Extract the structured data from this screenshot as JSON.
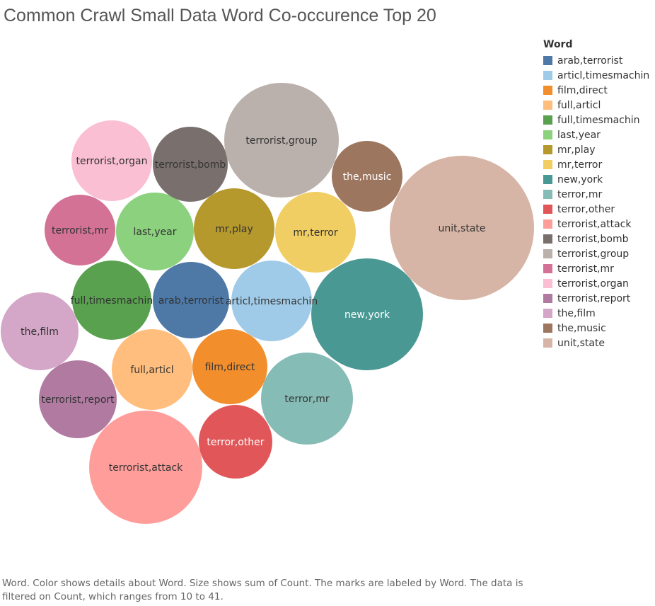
{
  "chart_data": {
    "type": "bubble",
    "title": "Common Crawl Small Data Word Co-occurence Top 20",
    "legend_title": "Word",
    "legend_position": "right",
    "legend_items": [
      {
        "label": "arab,terrorist",
        "color": "#4e79a7"
      },
      {
        "label": "articl,timesmachin",
        "color": "#a0cbe8"
      },
      {
        "label": "film,direct",
        "color": "#f28e2b"
      },
      {
        "label": "full,articl",
        "color": "#ffbe7d"
      },
      {
        "label": "full,timesmachin",
        "color": "#59a14f"
      },
      {
        "label": "last,year",
        "color": "#8cd17d"
      },
      {
        "label": "mr,play",
        "color": "#b6992d"
      },
      {
        "label": "mr,terror",
        "color": "#f1ce63"
      },
      {
        "label": "new,york",
        "color": "#499894"
      },
      {
        "label": "terror,mr",
        "color": "#86bcb6"
      },
      {
        "label": "terror,other",
        "color": "#e15759"
      },
      {
        "label": "terrorist,attack",
        "color": "#ff9d9a"
      },
      {
        "label": "terrorist,bomb",
        "color": "#79706e"
      },
      {
        "label": "terrorist,group",
        "color": "#bab0ac"
      },
      {
        "label": "terrorist,mr",
        "color": "#d37295"
      },
      {
        "label": "terrorist,organ",
        "color": "#fabfd2"
      },
      {
        "label": "terrorist,report",
        "color": "#b07aa1"
      },
      {
        "label": "the,film",
        "color": "#d4a6c8"
      },
      {
        "label": "the,music",
        "color": "#9d7660"
      },
      {
        "label": "unit,state",
        "color": "#d7b5a6"
      }
    ],
    "count_range": [
      10,
      41
    ],
    "note": "Word.  Color shows details about Word.  Size shows sum of Count.  The marks are labeled by Word. The data is filtered on Count, which ranges from 10 to 41."
  }
}
